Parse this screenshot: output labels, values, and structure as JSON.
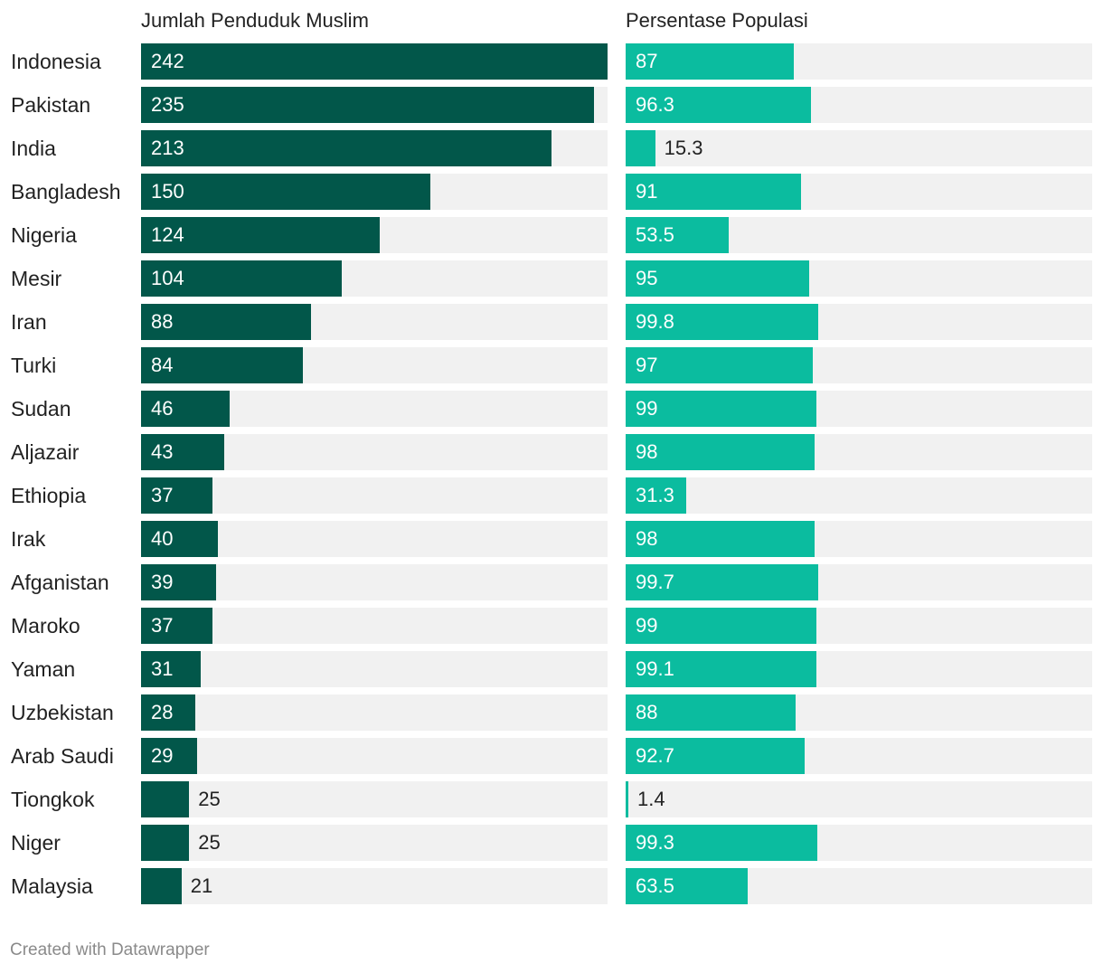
{
  "chart_data": {
    "type": "bar",
    "orientation": "horizontal",
    "categories": [
      "Indonesia",
      "Pakistan",
      "India",
      "Bangladesh",
      "Nigeria",
      "Mesir",
      "Iran",
      "Turki",
      "Sudan",
      "Aljazair",
      "Ethiopia",
      "Irak",
      "Afganistan",
      "Maroko",
      "Yaman",
      "Uzbekistan",
      "Arab Saudi",
      "Tiongkok",
      "Niger",
      "Malaysia"
    ],
    "series": [
      {
        "name": "Jumlah Penduduk Muslim",
        "values": [
          242,
          235,
          213,
          150,
          124,
          104,
          88,
          84,
          46,
          43,
          37,
          40,
          39,
          37,
          31,
          28,
          29,
          25,
          25,
          21
        ],
        "labels": [
          "242",
          "235",
          "213",
          "150",
          "124",
          "104",
          "88",
          "84",
          "46",
          "43",
          "37",
          "40",
          "39",
          "37",
          "31",
          "28",
          "29",
          "25",
          "25",
          "21"
        ],
        "max": 242,
        "color": "#02574a",
        "track_color": "#f1f1f1",
        "label_inside_color": "#ffffff",
        "label_outside_color": "#222222"
      },
      {
        "name": "Persentase Populasi",
        "values": [
          87,
          96.3,
          15.3,
          91,
          53.5,
          95,
          99.8,
          97,
          99,
          98,
          31.3,
          98,
          99.7,
          99,
          99.1,
          88,
          92.7,
          1.4,
          99.3,
          63.5
        ],
        "labels": [
          "87",
          "96.3",
          "15.3",
          "91",
          "53.5",
          "95",
          "99.8",
          "97",
          "99",
          "98",
          "31.3",
          "98",
          "99.7",
          "99",
          "99.1",
          "88",
          "92.7",
          "1.4",
          "99.3",
          "63.5"
        ],
        "max": 242,
        "color": "#0bbc9f",
        "track_color": "#f1f1f1",
        "label_inside_color": "#ffffff",
        "label_outside_color": "#222222"
      }
    ]
  },
  "footer": "Created with Datawrapper"
}
